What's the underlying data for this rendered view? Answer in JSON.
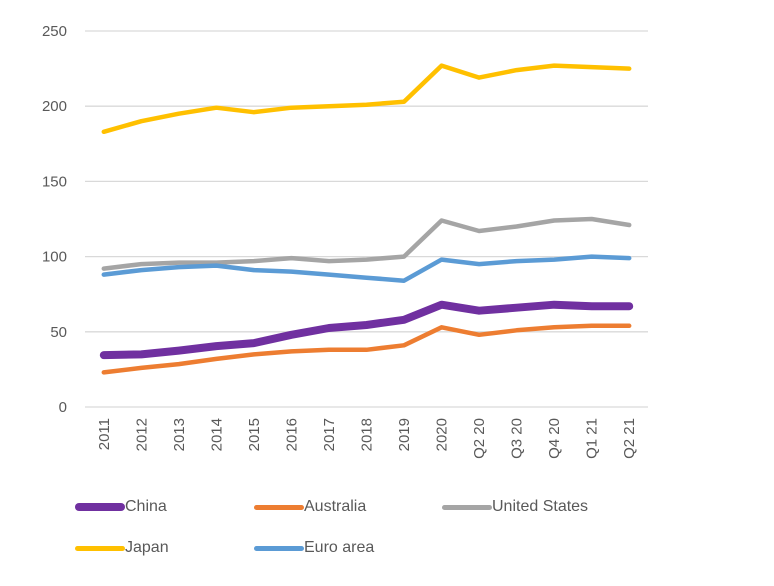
{
  "chart_data": {
    "type": "line",
    "title": "",
    "xlabel": "",
    "ylabel": "",
    "ylim": [
      0,
      250
    ],
    "yticks": [
      0,
      50,
      100,
      150,
      200,
      250
    ],
    "grid": true,
    "legend_position": "bottom",
    "categories": [
      "2011",
      "2012",
      "2013",
      "2014",
      "2015",
      "2016",
      "2017",
      "2018",
      "2019",
      "2020",
      "Q2 20",
      "Q3 20",
      "Q4 20",
      "Q1 21",
      "Q2 21"
    ],
    "series": [
      {
        "name": "China",
        "color": "#7030A0",
        "values": [
          34.5,
          35,
          37.5,
          40.5,
          42.5,
          48,
          52.5,
          54.5,
          58,
          68,
          64,
          66,
          68,
          67,
          67
        ]
      },
      {
        "name": "Australia",
        "color": "#ED7D31",
        "values": [
          23,
          26,
          28.5,
          32,
          35,
          37,
          38,
          38,
          41,
          53,
          48,
          51,
          53,
          54,
          54
        ]
      },
      {
        "name": "United States",
        "color": "#A5A5A5",
        "values": [
          92,
          95,
          96,
          96,
          97,
          99,
          97,
          98,
          100,
          124,
          117,
          120,
          124,
          125,
          121
        ]
      },
      {
        "name": "Japan",
        "color": "#FFC000",
        "values": [
          183,
          190,
          195,
          199,
          196,
          199,
          200,
          201,
          203,
          227,
          219,
          224,
          227,
          226,
          225
        ]
      },
      {
        "name": "Euro area",
        "color": "#5B9BD5",
        "values": [
          88,
          91,
          93,
          94,
          91,
          90,
          88,
          86,
          84,
          98,
          95,
          97,
          98,
          100,
          99
        ]
      }
    ]
  }
}
